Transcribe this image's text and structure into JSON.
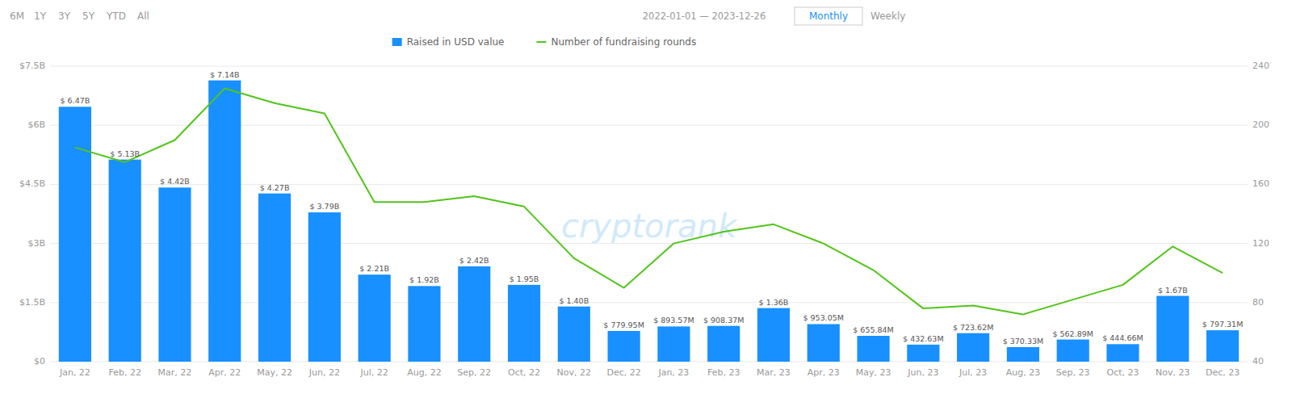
{
  "chart_data": {
    "type": "bar",
    "categories": [
      "Jan, 22",
      "Feb, 22",
      "Mar, 22",
      "Apr, 22",
      "May, 22",
      "Jun, 22",
      "Jul, 22",
      "Aug, 22",
      "Sep, 22",
      "Oct, 22",
      "Nov, 22",
      "Dec, 22",
      "Jan, 23",
      "Feb, 23",
      "Mar, 23",
      "Apr, 23",
      "May, 23",
      "Jun, 23",
      "Jul, 23",
      "Aug, 23",
      "Sep, 23",
      "Oct, 23",
      "Nov, 23",
      "Dec, 23"
    ],
    "series": [
      {
        "name": "Raised in USD value",
        "type": "bar",
        "color": "#1890FF",
        "values": [
          6.47,
          5.13,
          4.42,
          7.14,
          4.27,
          3.79,
          2.21,
          1.92,
          2.42,
          1.95,
          1.4,
          0.77995,
          0.89357,
          0.90837,
          1.36,
          0.95305,
          0.65584,
          0.43263,
          0.72362,
          0.37033,
          0.56289,
          0.44466,
          1.67,
          0.79731
        ],
        "value_labels": [
          "$ 6.47B",
          "$ 5.13B",
          "$ 4.42B",
          "$ 7.14B",
          "$ 4.27B",
          "$ 3.79B",
          "$ 2.21B",
          "$ 1.92B",
          "$ 2.42B",
          "$ 1.95B",
          "$ 1.40B",
          "$ 779.95M",
          "$ 893.57M",
          "$ 908.37M",
          "$ 1.36B",
          "$ 953.05M",
          "$ 655.84M",
          "$ 432.63M",
          "$ 723.62M",
          "$ 370.33M",
          "$ 562.89M",
          "$ 444.66M",
          "$ 1.67B",
          "$ 797.31M"
        ]
      },
      {
        "name": "Number of fundraising rounds",
        "type": "line",
        "color": "#52C41A",
        "axis": "y2",
        "values": [
          185,
          175,
          190,
          225,
          215,
          208,
          148,
          148,
          152,
          145,
          110,
          90,
          120,
          128,
          133,
          120,
          102,
          76,
          78,
          72,
          82,
          92,
          118,
          100
        ]
      }
    ],
    "ylim": [
      0,
      7.5
    ],
    "yticks": [
      {
        "value": 0,
        "label": "$0"
      },
      {
        "value": 1.5,
        "label": "$1.5B"
      },
      {
        "value": 3.0,
        "label": "$3B"
      },
      {
        "value": 4.5,
        "label": "$4.5B"
      },
      {
        "value": 6.0,
        "label": "$6B"
      },
      {
        "value": 7.5,
        "label": "$7.5B"
      }
    ],
    "y2lim": [
      40,
      240
    ],
    "y2ticks": [
      40,
      80,
      120,
      160,
      200,
      240
    ],
    "grid": true,
    "legend": "top",
    "data_labels": true,
    "annotations": [
      "cryptorank",
      "6M",
      "1Y",
      "3Y",
      "5Y",
      "YTD",
      "All",
      "2022-01-01 — 2023-12-26",
      "Monthly",
      "Weekly"
    ]
  }
}
